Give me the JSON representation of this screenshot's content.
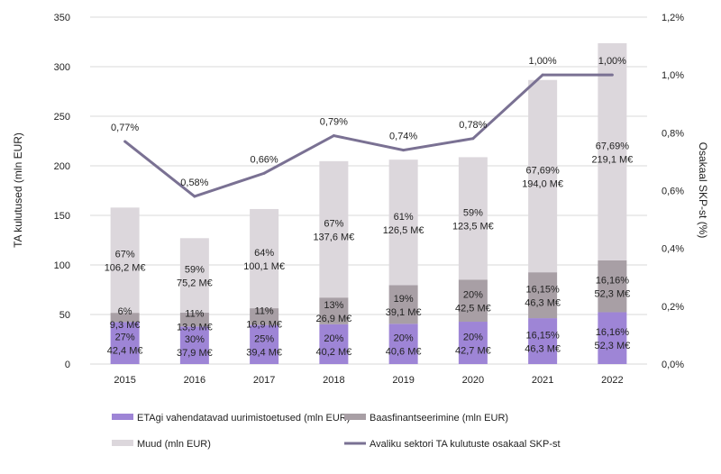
{
  "chart_data": {
    "type": "bar",
    "stacked": true,
    "categories": [
      "2015",
      "2016",
      "2017",
      "2018",
      "2019",
      "2020",
      "2021",
      "2022"
    ],
    "ylabel": "TA kulutused (mln EUR)",
    "y2label": "Osakaal SKP-st (%)",
    "ylim": [
      0,
      350
    ],
    "y_ticks": [
      "0",
      "50",
      "100",
      "150",
      "200",
      "250",
      "300",
      "350"
    ],
    "y2lim": [
      0,
      1.2
    ],
    "y2_ticks": [
      "0,0%",
      "0,2%",
      "0,4%",
      "0,6%",
      "0,8%",
      "1,0%",
      "1,2%"
    ],
    "grid": true,
    "legend_position": "bottom",
    "series": [
      {
        "name": "ETAgi vahendatavad uurimistoetused (mln EUR)",
        "color": "#9e85d6",
        "values": [
          42.4,
          37.9,
          39.4,
          40.2,
          40.6,
          42.7,
          46.3,
          52.3
        ],
        "labels": [
          [
            "27%",
            "42,4 M€"
          ],
          [
            "30%",
            "37,9 M€"
          ],
          [
            "25%",
            "39,4 M€"
          ],
          [
            "20%",
            "40,2 M€"
          ],
          [
            "20%",
            "40,6 M€"
          ],
          [
            "20%",
            "42,7 M€"
          ],
          [
            "16,15%",
            "46,3 M€"
          ],
          [
            "16,16%",
            "52,3 M€"
          ]
        ]
      },
      {
        "name": "Baasfinantseerimine (mln EUR)",
        "color": "#a89fa5",
        "values": [
          9.3,
          13.9,
          16.9,
          26.9,
          39.1,
          42.5,
          46.3,
          52.3
        ],
        "labels": [
          [
            "6%",
            "9,3 M€"
          ],
          [
            "11%",
            "13,9 M€"
          ],
          [
            "11%",
            "16,9 M€"
          ],
          [
            "13%",
            "26,9 M€"
          ],
          [
            "19%",
            "39,1 M€"
          ],
          [
            "20%",
            "42,5 M€"
          ],
          [
            "16,15%",
            "46,3 M€"
          ],
          [
            "16,16%",
            "52,3 M€"
          ]
        ]
      },
      {
        "name": "Muud (mln EUR)",
        "color": "#dcd7dc",
        "values": [
          106.2,
          75.2,
          100.1,
          137.6,
          126.5,
          123.5,
          194.0,
          219.1
        ],
        "labels": [
          [
            "67%",
            "106,2 M€"
          ],
          [
            "59%",
            "75,2 M€"
          ],
          [
            "64%",
            "100,1 M€"
          ],
          [
            "67%",
            "137,6 M€"
          ],
          [
            "61%",
            "126,5 M€"
          ],
          [
            "59%",
            "123,5 M€"
          ],
          [
            "67,69%",
            "194,0 M€"
          ],
          [
            "67,69%",
            "219,1 M€"
          ]
        ]
      }
    ],
    "line": {
      "name": "Avaliku sektori TA kulutuste osakaal SKP-st",
      "color": "#7a7193",
      "axis": "right",
      "values": [
        0.77,
        0.58,
        0.66,
        0.79,
        0.74,
        0.78,
        1.0,
        1.0
      ],
      "labels": [
        "0,77%",
        "0,58%",
        "0,66%",
        "0,79%",
        "0,74%",
        "0,78%",
        "1,00%",
        "1,00%"
      ]
    }
  }
}
